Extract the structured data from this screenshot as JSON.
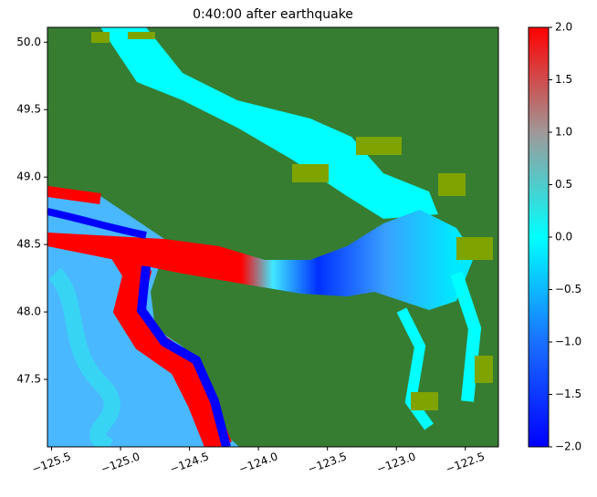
{
  "chart_data": {
    "type": "heatmap-map",
    "title": "0:40:00 after earthquake",
    "xlim": [
      -125.53,
      -122.26
    ],
    "ylim": [
      47.0,
      50.11
    ],
    "xticks": [
      {
        "value": -125.5,
        "label": "−125.5"
      },
      {
        "value": -125.0,
        "label": "−125.0"
      },
      {
        "value": -124.5,
        "label": "−124.5"
      },
      {
        "value": -124.0,
        "label": "−124.0"
      },
      {
        "value": -123.5,
        "label": "−123.5"
      },
      {
        "value": -123.0,
        "label": "−123.0"
      },
      {
        "value": -122.5,
        "label": "−122.5"
      }
    ],
    "yticks": [
      {
        "value": 47.5,
        "label": "47.5"
      },
      {
        "value": 48.0,
        "label": "48.0"
      },
      {
        "value": 48.5,
        "label": "48.5"
      },
      {
        "value": 49.0,
        "label": "49.0"
      },
      {
        "value": 49.5,
        "label": "49.5"
      },
      {
        "value": 50.0,
        "label": "50.0"
      }
    ],
    "colorbar": {
      "clim": [
        -2,
        2
      ],
      "colors": [
        "#0000ff",
        "#1a70ff",
        "#00ffff",
        "#a09898",
        "#ff0000"
      ],
      "ticks": [
        {
          "value": -2,
          "label": "−2.0"
        },
        {
          "value": -1.5,
          "label": "−1.5"
        },
        {
          "value": -1,
          "label": "−1.0"
        },
        {
          "value": -0.5,
          "label": "−0.5"
        },
        {
          "value": 0,
          "label": "0.0"
        },
        {
          "value": 0.5,
          "label": "0.5"
        },
        {
          "value": 1,
          "label": "1.0"
        },
        {
          "value": 1.5,
          "label": "1.5"
        },
        {
          "value": 2,
          "label": "2.0"
        }
      ]
    }
  }
}
